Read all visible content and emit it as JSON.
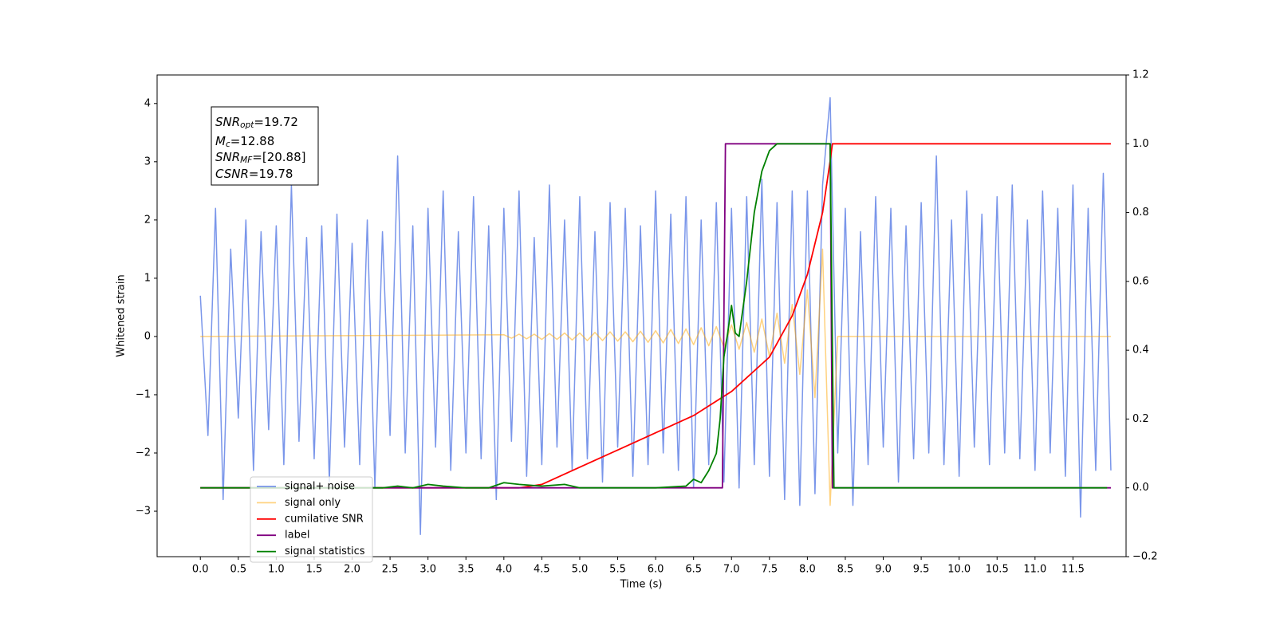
{
  "chart_data": {
    "type": "line",
    "xlabel": "Time (s)",
    "ylabel": "Whitened strain",
    "xlim": [
      -0.57,
      12.2
    ],
    "ylim": [
      -3.78,
      4.49
    ],
    "y2lim": [
      -0.2,
      1.2
    ],
    "xticks": [
      {
        "value": 0,
        "label": "0.0"
      },
      {
        "value": 0.5,
        "label": "0.5"
      },
      {
        "value": 1,
        "label": "1.0"
      },
      {
        "value": 1.5,
        "label": "1.5"
      },
      {
        "value": 2,
        "label": "2.0"
      },
      {
        "value": 2.5,
        "label": "2.5"
      },
      {
        "value": 3,
        "label": "3.0"
      },
      {
        "value": 3.5,
        "label": "3.5"
      },
      {
        "value": 4,
        "label": "4.0"
      },
      {
        "value": 4.5,
        "label": "4.5"
      },
      {
        "value": 5,
        "label": "5.0"
      },
      {
        "value": 5.5,
        "label": "5.5"
      },
      {
        "value": 6,
        "label": "6.0"
      },
      {
        "value": 6.5,
        "label": "6.5"
      },
      {
        "value": 7,
        "label": "7.0"
      },
      {
        "value": 7.5,
        "label": "7.5"
      },
      {
        "value": 8,
        "label": "8.0"
      },
      {
        "value": 8.5,
        "label": "8.5"
      },
      {
        "value": 9,
        "label": "9.0"
      },
      {
        "value": 9.5,
        "label": "9.5"
      },
      {
        "value": 10,
        "label": "10.0"
      },
      {
        "value": 10.5,
        "label": "10.5"
      },
      {
        "value": 11,
        "label": "11.0"
      },
      {
        "value": 11.5,
        "label": "11.5"
      }
    ],
    "yticks": [
      {
        "value": -3,
        "label": "−3"
      },
      {
        "value": -2,
        "label": "−2"
      },
      {
        "value": -1,
        "label": "−1"
      },
      0,
      1,
      2,
      3,
      4
    ],
    "y2ticks": [
      {
        "value": -0.2,
        "label": "−0.2"
      },
      {
        "value": 0,
        "label": "0.0"
      },
      {
        "value": 0.2,
        "label": "0.2"
      },
      {
        "value": 0.4,
        "label": "0.4"
      },
      {
        "value": 0.6,
        "label": "0.6"
      },
      {
        "value": 0.8,
        "label": "0.8"
      },
      {
        "value": 1,
        "label": "1.0"
      },
      {
        "value": 1.2,
        "label": "1.2"
      }
    ],
    "legend_loc": "lower left",
    "annotation": [
      {
        "main": "SNR",
        "sub": "opt",
        "rest": "=19.72"
      },
      {
        "main": "M",
        "sub": "c",
        "rest": "=12.88"
      },
      {
        "main": "SNR",
        "sub": "MF",
        "rest": "=[20.88]"
      },
      {
        "main": "CSNR",
        "rest": "=19.78"
      }
    ],
    "series": [
      {
        "name": "signal+ noise",
        "color": "#4169e1",
        "alpha": 0.7,
        "x": [
          0,
          0.1,
          0.2,
          0.3,
          0.4,
          0.5,
          0.6,
          0.7,
          0.8,
          0.9,
          1,
          1.1,
          1.2,
          1.3,
          1.4,
          1.5,
          1.6,
          1.7,
          1.8,
          1.9,
          2,
          2.1,
          2.2,
          2.3,
          2.4,
          2.5,
          2.6,
          2.7,
          2.8,
          2.9,
          3,
          3.1,
          3.2,
          3.3,
          3.4,
          3.5,
          3.6,
          3.7,
          3.8,
          3.9,
          4,
          4.1,
          4.2,
          4.3,
          4.4,
          4.5,
          4.6,
          4.7,
          4.8,
          4.9,
          5,
          5.1,
          5.2,
          5.3,
          5.4,
          5.5,
          5.6,
          5.7,
          5.8,
          5.9,
          6,
          6.1,
          6.2,
          6.3,
          6.4,
          6.5,
          6.6,
          6.7,
          6.8,
          6.9,
          7,
          7.1,
          7.2,
          7.3,
          7.4,
          7.5,
          7.6,
          7.7,
          7.8,
          7.9,
          8,
          8.1,
          8.2,
          8.3,
          8.4,
          8.5,
          8.6,
          8.7,
          8.8,
          8.9,
          9,
          9.1,
          9.2,
          9.3,
          9.4,
          9.5,
          9.6,
          9.7,
          9.8,
          9.9,
          10,
          10.1,
          10.2,
          10.3,
          10.4,
          10.5,
          10.6,
          10.7,
          10.8,
          10.9,
          11,
          11.1,
          11.2,
          11.3,
          11.4,
          11.5,
          11.6,
          11.7,
          11.8,
          11.9,
          12
        ],
        "values": [
          0.7,
          -1.7,
          2.2,
          -2.8,
          1.5,
          -1.4,
          2.0,
          -2.3,
          1.8,
          -1.6,
          1.9,
          -2.2,
          2.6,
          -1.8,
          1.7,
          -2.1,
          1.9,
          -2.5,
          2.1,
          -1.9,
          1.6,
          -2.2,
          2.0,
          -2.6,
          1.8,
          -1.7,
          3.1,
          -2.0,
          1.9,
          -3.4,
          2.2,
          -1.9,
          2.5,
          -2.3,
          1.8,
          -2.0,
          2.4,
          -2.1,
          1.9,
          -2.8,
          2.2,
          -1.8,
          2.5,
          -2.4,
          1.7,
          -2.2,
          2.6,
          -1.9,
          2.0,
          -2.3,
          2.4,
          -2.1,
          1.8,
          -2.5,
          2.3,
          -1.9,
          2.2,
          -2.4,
          1.9,
          -2.2,
          2.5,
          -2.0,
          2.1,
          -2.3,
          2.4,
          -2.6,
          2.0,
          -2.2,
          2.3,
          -2.5,
          2.2,
          -2.6,
          2.4,
          -2.2,
          2.7,
          -2.4,
          2.3,
          -2.8,
          2.5,
          -2.9,
          2.5,
          -2.7,
          2.6,
          4.1,
          -2.0,
          2.2,
          -2.9,
          1.8,
          -2.2,
          2.4,
          -1.9,
          2.2,
          -2.5,
          1.9,
          -2.1,
          2.3,
          -2.0,
          3.1,
          -2.2,
          2.0,
          -2.4,
          2.5,
          -1.9,
          2.1,
          -2.2,
          2.4,
          -2.0,
          2.6,
          -2.1,
          2.0,
          -2.3,
          2.5,
          -2.0,
          2.2,
          -2.4,
          2.6,
          -3.1,
          2.2,
          -2.3,
          2.8,
          -2.3
        ]
      },
      {
        "name": "signal only",
        "color": "#ffa500",
        "alpha": 0.5,
        "x": [
          0,
          4,
          4.1,
          4.2,
          4.3,
          4.4,
          4.5,
          4.6,
          4.7,
          4.8,
          4.9,
          5,
          5.1,
          5.2,
          5.3,
          5.4,
          5.5,
          5.6,
          5.7,
          5.8,
          5.9,
          6,
          6.1,
          6.2,
          6.3,
          6.4,
          6.5,
          6.6,
          6.7,
          6.8,
          6.9,
          7,
          7.1,
          7.2,
          7.3,
          7.4,
          7.5,
          7.6,
          7.7,
          7.8,
          7.9,
          8,
          8.1,
          8.2,
          8.3,
          8.4,
          12
        ],
        "values": [
          0,
          0.03,
          -0.03,
          0.04,
          -0.04,
          0.04,
          -0.05,
          0.05,
          -0.05,
          0.06,
          -0.06,
          0.06,
          -0.07,
          0.07,
          -0.07,
          0.08,
          -0.08,
          0.08,
          -0.09,
          0.09,
          -0.1,
          0.1,
          -0.11,
          0.12,
          -0.12,
          0.13,
          -0.14,
          0.15,
          -0.16,
          0.17,
          -0.19,
          0.2,
          -0.22,
          0.24,
          -0.27,
          0.3,
          -0.34,
          0.4,
          -0.46,
          0.55,
          -0.65,
          0.8,
          -1.05,
          1.5,
          -2.9,
          0,
          0
        ]
      },
      {
        "name": "cumilative SNR",
        "color": "#ff0000",
        "axis": "y2",
        "x": [
          0,
          4.2,
          4.5,
          5,
          5.5,
          6,
          6.5,
          7,
          7.5,
          7.8,
          8,
          8.2,
          8.3,
          8.33,
          12
        ],
        "values": [
          0,
          0,
          0.01,
          0.06,
          0.11,
          0.16,
          0.21,
          0.28,
          0.38,
          0.5,
          0.62,
          0.8,
          0.95,
          1,
          1
        ]
      },
      {
        "name": "label",
        "color": "#800080",
        "axis": "y2",
        "x": [
          0,
          6.88,
          6.92,
          8.3,
          8.33,
          12
        ],
        "values": [
          0,
          0,
          1,
          1,
          0,
          0
        ]
      },
      {
        "name": "signal statistics",
        "color": "#008000",
        "axis": "y2",
        "x": [
          0,
          2.4,
          2.6,
          2.8,
          3,
          3.2,
          3.5,
          3.8,
          4,
          4.2,
          4.5,
          4.8,
          5,
          6,
          6.4,
          6.5,
          6.6,
          6.7,
          6.8,
          6.85,
          6.9,
          6.95,
          7,
          7.05,
          7.1,
          7.2,
          7.3,
          7.4,
          7.5,
          7.6,
          8.3,
          8.35,
          11.95
        ],
        "values": [
          0,
          0,
          0.005,
          0,
          0.01,
          0.005,
          0,
          0,
          0.015,
          0.01,
          0.005,
          0.01,
          0,
          0,
          0.005,
          0.025,
          0.015,
          0.05,
          0.1,
          0.2,
          0.38,
          0.45,
          0.53,
          0.45,
          0.44,
          0.6,
          0.8,
          0.92,
          0.98,
          1,
          1,
          0,
          0
        ]
      }
    ]
  }
}
